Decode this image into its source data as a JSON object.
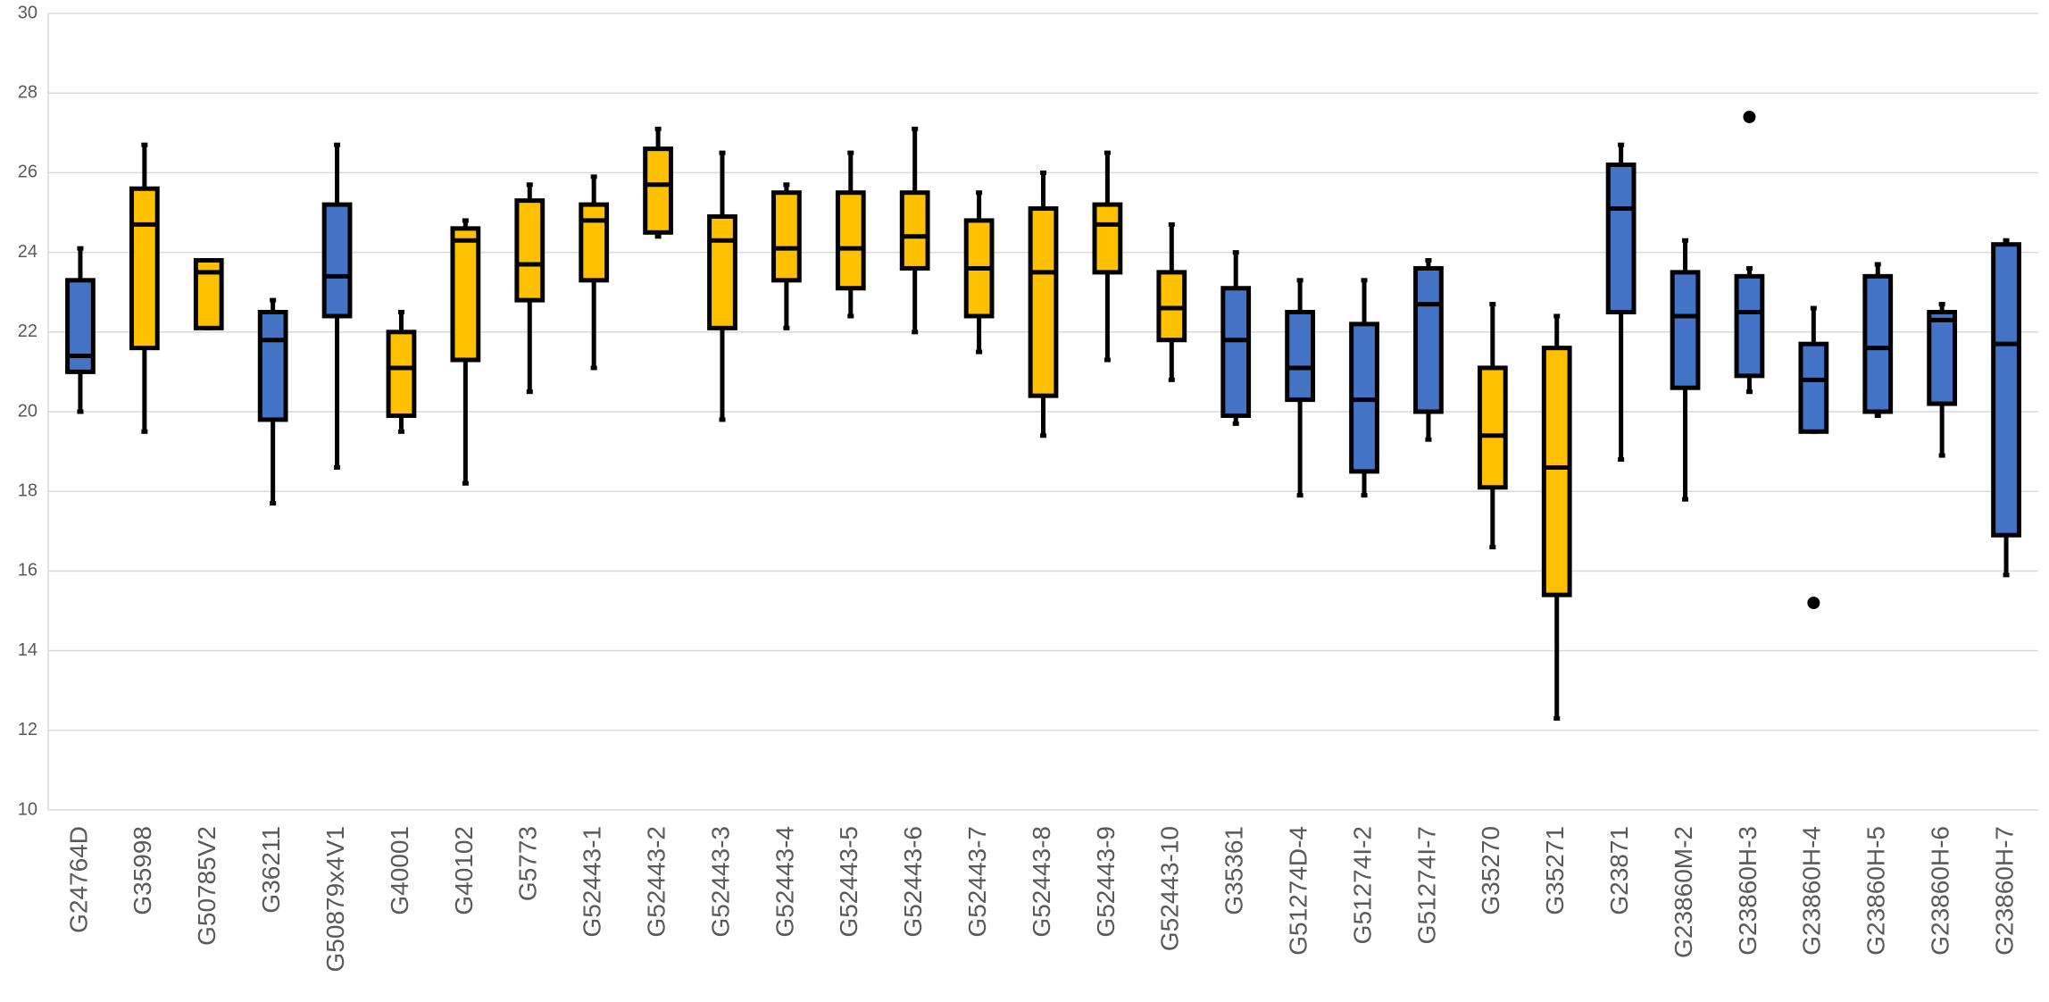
{
  "chart_data": {
    "type": "box",
    "categories": [
      "G24764D",
      "G35998",
      "G50785V2",
      "G36211",
      "G50879x4V1",
      "G40001",
      "G40102",
      "G5773",
      "G52443-1",
      "G52443-2",
      "G52443-3",
      "G52443-4",
      "G52443-5",
      "G52443-6",
      "G52443-7",
      "G52443-8",
      "G52443-9",
      "G52443-10",
      "G35361",
      "G51274D-4",
      "G51274I-2",
      "G51274I-7",
      "G35270",
      "G35271",
      "G23871",
      "G23860M-2",
      "G23860H-3",
      "G23860H-4",
      "G23860H-5",
      "G23860H-6",
      "G23860H-7"
    ],
    "min": [
      20.0,
      19.5,
      22.1,
      17.7,
      18.6,
      19.5,
      18.2,
      20.5,
      21.1,
      24.4,
      19.8,
      22.1,
      22.4,
      22.0,
      21.5,
      19.4,
      21.3,
      20.8,
      19.7,
      17.9,
      17.9,
      19.3,
      16.6,
      12.3,
      18.8,
      17.8,
      20.5,
      19.5,
      19.9,
      18.9,
      15.9
    ],
    "q1": [
      21.0,
      21.6,
      22.1,
      19.8,
      22.4,
      19.9,
      21.3,
      22.8,
      23.3,
      24.5,
      22.1,
      23.3,
      23.1,
      23.6,
      22.4,
      20.4,
      23.5,
      21.8,
      19.9,
      20.3,
      18.5,
      20.0,
      18.1,
      15.4,
      22.5,
      20.6,
      20.9,
      19.5,
      20.0,
      20.2,
      16.9
    ],
    "median": [
      21.4,
      24.7,
      23.5,
      21.8,
      23.4,
      21.1,
      24.3,
      23.7,
      24.8,
      25.7,
      24.3,
      24.1,
      24.1,
      24.4,
      23.6,
      23.5,
      24.7,
      22.6,
      21.8,
      21.1,
      20.3,
      22.7,
      19.4,
      18.6,
      25.1,
      22.4,
      22.5,
      20.8,
      21.6,
      22.3,
      21.7
    ],
    "q3": [
      23.3,
      25.6,
      23.8,
      22.5,
      25.2,
      22.0,
      24.6,
      25.3,
      25.2,
      26.6,
      24.9,
      25.5,
      25.5,
      25.5,
      24.8,
      25.1,
      25.2,
      23.5,
      23.1,
      22.5,
      22.2,
      23.6,
      21.1,
      21.6,
      26.2,
      23.5,
      23.4,
      21.7,
      23.4,
      22.5,
      24.2
    ],
    "max": [
      24.1,
      26.7,
      23.8,
      22.8,
      26.7,
      22.5,
      24.8,
      25.7,
      25.9,
      27.1,
      26.5,
      25.7,
      26.5,
      27.1,
      25.5,
      26.0,
      26.5,
      24.7,
      24.0,
      23.3,
      23.3,
      23.8,
      22.7,
      22.4,
      26.7,
      24.3,
      23.6,
      22.6,
      23.7,
      22.7,
      24.3
    ],
    "outliers": [
      [],
      [],
      [],
      [],
      [],
      [],
      [],
      [],
      [],
      [],
      [],
      [],
      [],
      [],
      [],
      [],
      [],
      [],
      [],
      [],
      [],
      [],
      [],
      [],
      [],
      [],
      [
        27.4
      ],
      [
        15.2
      ],
      [],
      [],
      []
    ],
    "colors": [
      "#4472c4",
      "#ffc000",
      "#ffc000",
      "#4472c4",
      "#4472c4",
      "#ffc000",
      "#ffc000",
      "#ffc000",
      "#ffc000",
      "#ffc000",
      "#ffc000",
      "#ffc000",
      "#ffc000",
      "#ffc000",
      "#ffc000",
      "#ffc000",
      "#ffc000",
      "#ffc000",
      "#4472c4",
      "#4472c4",
      "#4472c4",
      "#4472c4",
      "#ffc000",
      "#ffc000",
      "#4472c4",
      "#4472c4",
      "#4472c4",
      "#4472c4",
      "#4472c4",
      "#4472c4",
      "#4472c4"
    ],
    "ylim": [
      10,
      30
    ],
    "yticks": [
      10,
      12,
      14,
      16,
      18,
      20,
      22,
      24,
      26,
      28,
      30
    ],
    "grid": true
  }
}
